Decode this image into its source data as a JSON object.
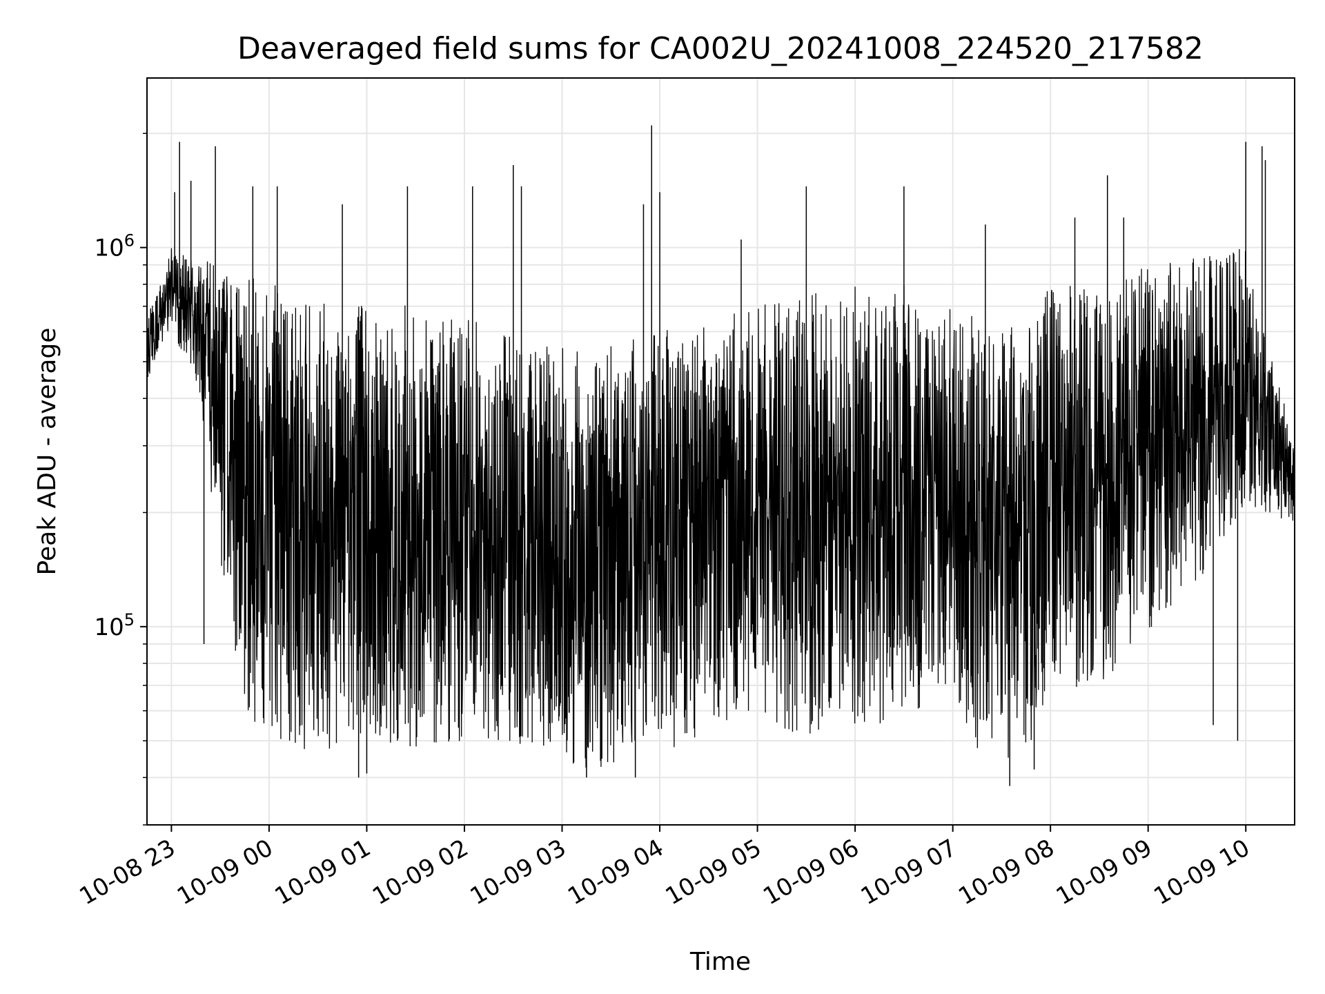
{
  "chart_data": {
    "type": "line",
    "title": "Deaveraged field sums for CA002U_20241008_224520_217582",
    "xlabel": "Time",
    "ylabel": "Peak ADU - average",
    "yscale": "log",
    "xlim": [
      "2024-10-08 22:45",
      "2024-10-09 10:30"
    ],
    "ylim": [
      30000,
      2800000
    ],
    "grid": true,
    "line_color": "#000000",
    "grid_color": "#e6e6e6",
    "x_ticks": [
      {
        "label": "10-08 23",
        "t": "2024-10-08 23:00"
      },
      {
        "label": "10-09 00",
        "t": "2024-10-09 00:00"
      },
      {
        "label": "10-09 01",
        "t": "2024-10-09 01:00"
      },
      {
        "label": "10-09 02",
        "t": "2024-10-09 02:00"
      },
      {
        "label": "10-09 03",
        "t": "2024-10-09 03:00"
      },
      {
        "label": "10-09 04",
        "t": "2024-10-09 04:00"
      },
      {
        "label": "10-09 05",
        "t": "2024-10-09 05:00"
      },
      {
        "label": "10-09 06",
        "t": "2024-10-09 06:00"
      },
      {
        "label": "10-09 07",
        "t": "2024-10-09 07:00"
      },
      {
        "label": "10-09 08",
        "t": "2024-10-09 08:00"
      },
      {
        "label": "10-09 09",
        "t": "2024-10-09 09:00"
      },
      {
        "label": "10-09 10",
        "t": "2024-10-09 10:00"
      }
    ],
    "y_major_ticks": [
      {
        "base": "10",
        "exp": "5",
        "value": 100000
      },
      {
        "base": "10",
        "exp": "6",
        "value": 1000000
      }
    ],
    "series": [
      {
        "envelope": {
          "t": [
            "2024-10-08 22:45",
            "2024-10-08 23:00",
            "2024-10-08 23:15",
            "2024-10-08 23:30",
            "2024-10-08 23:45",
            "2024-10-09 00:00",
            "2024-10-09 00:30",
            "2024-10-09 01:00",
            "2024-10-09 01:30",
            "2024-10-09 02:00",
            "2024-10-09 02:30",
            "2024-10-09 03:00",
            "2024-10-09 03:30",
            "2024-10-09 04:00",
            "2024-10-09 04:30",
            "2024-10-09 05:00",
            "2024-10-09 05:30",
            "2024-10-09 06:00",
            "2024-10-09 06:30",
            "2024-10-09 07:00",
            "2024-10-09 07:15",
            "2024-10-09 07:30",
            "2024-10-09 07:45",
            "2024-10-09 08:00",
            "2024-10-09 08:30",
            "2024-10-09 09:00",
            "2024-10-09 09:30",
            "2024-10-09 10:00",
            "2024-10-09 10:30"
          ],
          "low": [
            450000,
            600000,
            450000,
            150000,
            60000,
            50000,
            46000,
            46000,
            48000,
            50000,
            50000,
            42000,
            42000,
            46000,
            50000,
            52000,
            52000,
            55000,
            55000,
            70000,
            46000,
            42000,
            44000,
            68000,
            70000,
            95000,
            130000,
            200000,
            180000
          ],
          "high": [
            650000,
            1000000,
            950000,
            900000,
            850000,
            800000,
            800000,
            750000,
            700000,
            650000,
            600000,
            550000,
            550000,
            600000,
            650000,
            700000,
            750000,
            800000,
            800000,
            700000,
            650000,
            600000,
            650000,
            800000,
            800000,
            900000,
            950000,
            1000000,
            300000
          ]
        },
        "spikes": [
          [
            "2024-10-08 23:05",
            1900000
          ],
          [
            "2024-10-08 23:02",
            1400000
          ],
          [
            "2024-10-08 23:12",
            1500000
          ],
          [
            "2024-10-08 23:27",
            1850000
          ],
          [
            "2024-10-08 23:50",
            1450000
          ],
          [
            "2024-10-09 00:05",
            1450000
          ],
          [
            "2024-10-09 00:45",
            1300000
          ],
          [
            "2024-10-09 01:25",
            1450000
          ],
          [
            "2024-10-09 02:05",
            1450000
          ],
          [
            "2024-10-09 02:30",
            1650000
          ],
          [
            "2024-10-09 02:35",
            1450000
          ],
          [
            "2024-10-09 03:50",
            1300000
          ],
          [
            "2024-10-09 03:55",
            2100000
          ],
          [
            "2024-10-09 04:00",
            1400000
          ],
          [
            "2024-10-09 04:50",
            1050000
          ],
          [
            "2024-10-09 05:30",
            1450000
          ],
          [
            "2024-10-09 06:30",
            1450000
          ],
          [
            "2024-10-09 07:20",
            1150000
          ],
          [
            "2024-10-09 08:15",
            1200000
          ],
          [
            "2024-10-09 08:35",
            1550000
          ],
          [
            "2024-10-09 08:45",
            1200000
          ],
          [
            "2024-10-09 10:00",
            1900000
          ],
          [
            "2024-10-09 10:10",
            1850000
          ],
          [
            "2024-10-09 10:12",
            1700000
          ],
          [
            "2024-10-08 23:20",
            90000
          ],
          [
            "2024-10-09 00:55",
            40000
          ],
          [
            "2024-10-09 01:00",
            41000
          ],
          [
            "2024-10-09 03:15",
            40000
          ],
          [
            "2024-10-09 03:45",
            40000
          ],
          [
            "2024-10-09 07:35",
            38000
          ],
          [
            "2024-10-09 07:50",
            42000
          ],
          [
            "2024-10-09 09:55",
            50000
          ],
          [
            "2024-10-09 09:40",
            55000
          ]
        ]
      }
    ]
  }
}
